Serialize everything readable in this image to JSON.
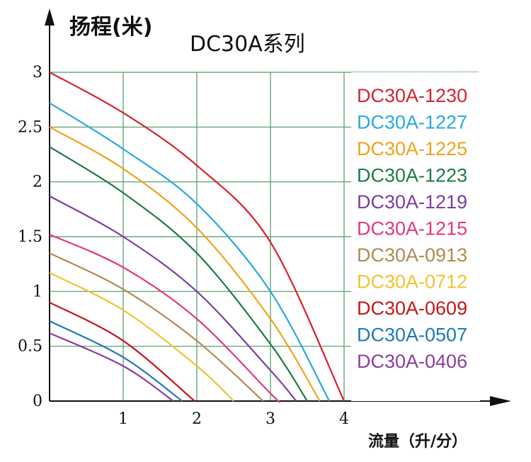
{
  "chart_data": {
    "type": "line",
    "title": "DC30A系列",
    "ylabel": "扬程(米)",
    "xlabel": "流量（升/分）",
    "xlim": [
      0,
      4
    ],
    "ylim": [
      0,
      3
    ],
    "x_ticks": [
      "1",
      "2",
      "3",
      "4"
    ],
    "y_ticks": [
      "0",
      "0.5",
      "1",
      "1.5",
      "2",
      "2.5",
      "3"
    ],
    "grid": true,
    "legend_position": "right",
    "series": [
      {
        "name": "DC30A-1230",
        "color": "#d4232f",
        "x": [
          0,
          1,
          2,
          3,
          4
        ],
        "y": [
          3.0,
          2.63,
          2.15,
          1.45,
          0.0
        ]
      },
      {
        "name": "DC30A-1227",
        "color": "#29a9e0",
        "x": [
          0,
          1,
          2,
          3,
          3.8
        ],
        "y": [
          2.72,
          2.3,
          1.8,
          1.0,
          0.0
        ]
      },
      {
        "name": "DC30A-1225",
        "color": "#f0a21c",
        "x": [
          0,
          1,
          2,
          3,
          3.67
        ],
        "y": [
          2.5,
          2.12,
          1.58,
          0.75,
          0.0
        ]
      },
      {
        "name": "DC30A-1223",
        "color": "#1d7a47",
        "x": [
          0,
          1,
          2,
          3,
          3.5
        ],
        "y": [
          2.32,
          1.9,
          1.35,
          0.52,
          0.0
        ]
      },
      {
        "name": "DC30A-1219",
        "color": "#7b3f9e",
        "x": [
          0,
          1,
          2,
          3,
          3.35
        ],
        "y": [
          1.87,
          1.5,
          1.0,
          0.28,
          0.0
        ]
      },
      {
        "name": "DC30A-1215",
        "color": "#e2397e",
        "x": [
          0,
          1,
          2,
          3,
          3.12
        ],
        "y": [
          1.52,
          1.22,
          0.75,
          0.07,
          0.0
        ]
      },
      {
        "name": "DC30A-0913",
        "color": "#b08a55",
        "x": [
          0,
          1,
          2,
          2.9
        ],
        "y": [
          1.35,
          1.02,
          0.55,
          0.0
        ]
      },
      {
        "name": "DC30A-0712",
        "color": "#f2c230",
        "x": [
          0,
          1,
          2,
          2.5
        ],
        "y": [
          1.17,
          0.83,
          0.32,
          0.0
        ]
      },
      {
        "name": "DC30A-0609",
        "color": "#c4161c",
        "x": [
          0,
          1,
          1.97
        ],
        "y": [
          0.9,
          0.55,
          0.0
        ]
      },
      {
        "name": "DC30A-0507",
        "color": "#1f78b8",
        "x": [
          0,
          1,
          1.8
        ],
        "y": [
          0.73,
          0.4,
          0.0
        ]
      },
      {
        "name": "DC30A-0406",
        "color": "#8e3d9c",
        "x": [
          0,
          1,
          1.68
        ],
        "y": [
          0.62,
          0.32,
          0.0
        ]
      }
    ],
    "colors": {
      "grid": "#4c9a63",
      "axis": "#111111"
    }
  }
}
